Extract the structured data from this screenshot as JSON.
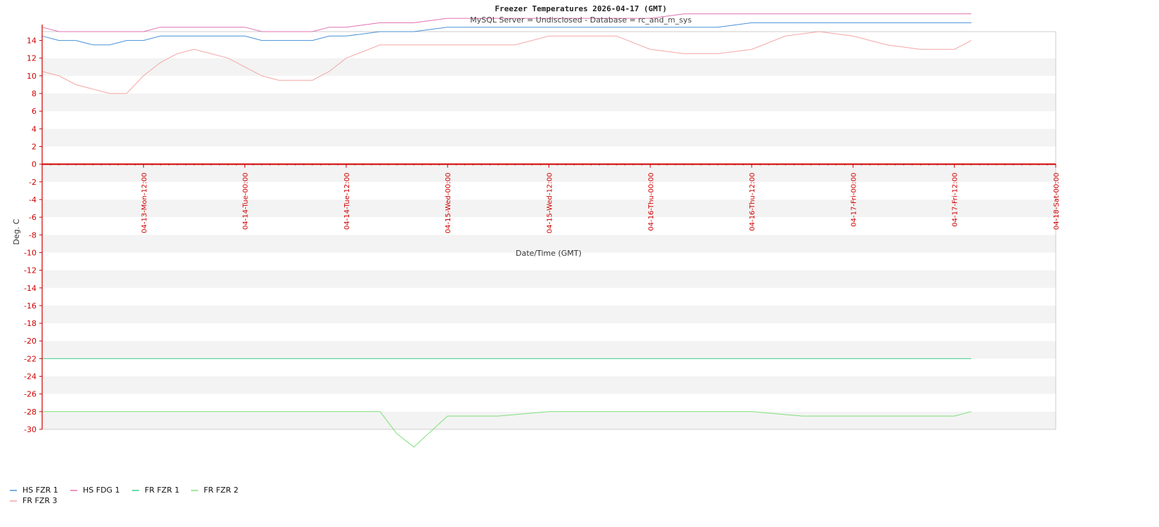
{
  "chart_data": {
    "type": "line",
    "title": "Freezer Temperatures 2026-04-17 (GMT)",
    "subtitle": "MySQL Server = Undisclosed - Database = rc_and_m_sys",
    "xlabel": "Date/Time (GMT)",
    "ylabel": "Deg. C",
    "ylim": [
      -30,
      15
    ],
    "xlim": [
      "2026-04-13 00:00",
      "2026-04-18 00:00"
    ],
    "x_ticks": [
      "04-13-Mon-12:00",
      "04-14-Tue-00:00",
      "04-14-Tue-12:00",
      "04-15-Wed-00:00",
      "04-15-Wed-12:00",
      "04-16-Thu-00:00",
      "04-16-Thu-12:00",
      "04-17-Fri-00:00",
      "04-17-Fri-12:00",
      "04-18-Sat-00:00"
    ],
    "y_ticks": [
      14,
      12,
      10,
      8,
      6,
      4,
      2,
      0,
      -2,
      -4,
      -6,
      -8,
      -10,
      -12,
      -14,
      -16,
      -18,
      -20,
      -22,
      -24,
      -26,
      -28,
      -30
    ],
    "grid": true,
    "legend_position": "bottom-left",
    "series": [
      {
        "name": "HS FZR 1",
        "color": "#4a90d9",
        "x": [
          "2026-04-13 00:00",
          "2026-04-13 02:00",
          "2026-04-13 04:00",
          "2026-04-13 06:00",
          "2026-04-13 08:00",
          "2026-04-13 10:00",
          "2026-04-13 12:00",
          "2026-04-13 14:00",
          "2026-04-13 16:00",
          "2026-04-13 18:00",
          "2026-04-13 20:00",
          "2026-04-13 22:00",
          "2026-04-14 00:00",
          "2026-04-14 02:00",
          "2026-04-14 04:00",
          "2026-04-14 06:00",
          "2026-04-14 08:00",
          "2026-04-14 10:00",
          "2026-04-14 12:00",
          "2026-04-14 16:00",
          "2026-04-14 20:00",
          "2026-04-15 00:00",
          "2026-04-15 04:00",
          "2026-04-15 08:00",
          "2026-04-15 12:00",
          "2026-04-15 16:00",
          "2026-04-15 20:00",
          "2026-04-16 00:00",
          "2026-04-16 04:00",
          "2026-04-16 08:00",
          "2026-04-16 12:00",
          "2026-04-16 16:00",
          "2026-04-16 20:00",
          "2026-04-17 00:00",
          "2026-04-17 04:00",
          "2026-04-17 08:00",
          "2026-04-17 12:00",
          "2026-04-17 14:00"
        ],
        "y": [
          14.5,
          14.0,
          14.0,
          13.5,
          13.5,
          14.0,
          14.0,
          14.5,
          14.5,
          14.5,
          14.5,
          14.5,
          14.5,
          14.0,
          14.0,
          14.0,
          14.0,
          14.5,
          14.5,
          15.0,
          15.0,
          15.5,
          15.5,
          15.5,
          15.5,
          15.5,
          15.5,
          15.5,
          15.5,
          15.5,
          16.0,
          16.0,
          16.0,
          16.0,
          16.0,
          16.0,
          16.0,
          16.0
        ]
      },
      {
        "name": "HS FDG 1",
        "color": "#e070b0",
        "x": [
          "2026-04-13 00:00",
          "2026-04-13 02:00",
          "2026-04-13 04:00",
          "2026-04-13 06:00",
          "2026-04-13 08:00",
          "2026-04-13 10:00",
          "2026-04-13 12:00",
          "2026-04-13 14:00",
          "2026-04-13 16:00",
          "2026-04-13 18:00",
          "2026-04-13 20:00",
          "2026-04-13 22:00",
          "2026-04-14 00:00",
          "2026-04-14 02:00",
          "2026-04-14 04:00",
          "2026-04-14 06:00",
          "2026-04-14 08:00",
          "2026-04-14 10:00",
          "2026-04-14 12:00",
          "2026-04-14 16:00",
          "2026-04-14 20:00",
          "2026-04-15 00:00",
          "2026-04-15 04:00",
          "2026-04-15 08:00",
          "2026-04-15 12:00",
          "2026-04-15 16:00",
          "2026-04-15 20:00",
          "2026-04-16 00:00",
          "2026-04-16 04:00",
          "2026-04-16 08:00",
          "2026-04-16 12:00",
          "2026-04-16 16:00",
          "2026-04-16 20:00",
          "2026-04-17 00:00",
          "2026-04-17 04:00",
          "2026-04-17 08:00",
          "2026-04-17 12:00",
          "2026-04-17 14:00"
        ],
        "y": [
          15.5,
          15.0,
          15.0,
          15.0,
          15.0,
          15.0,
          15.0,
          15.5,
          15.5,
          15.5,
          15.5,
          15.5,
          15.5,
          15.0,
          15.0,
          15.0,
          15.0,
          15.5,
          15.5,
          16.0,
          16.0,
          16.5,
          16.5,
          16.5,
          16.5,
          16.5,
          16.5,
          16.5,
          17.0,
          17.0,
          17.0,
          17.0,
          17.0,
          17.0,
          17.0,
          17.0,
          17.0,
          17.0
        ]
      },
      {
        "name": "FR FZR 1",
        "color": "#3ecf8e",
        "x": [
          "2026-04-13 00:00",
          "2026-04-13 06:00",
          "2026-04-13 12:00",
          "2026-04-13 18:00",
          "2026-04-14 00:00",
          "2026-04-14 06:00",
          "2026-04-14 12:00",
          "2026-04-14 18:00",
          "2026-04-15 00:00",
          "2026-04-15 06:00",
          "2026-04-15 12:00",
          "2026-04-15 18:00",
          "2026-04-16 00:00",
          "2026-04-16 06:00",
          "2026-04-16 12:00",
          "2026-04-16 18:00",
          "2026-04-17 00:00",
          "2026-04-17 06:00",
          "2026-04-17 12:00",
          "2026-04-17 14:00"
        ],
        "y": [
          -22.0,
          -22.0,
          -22.0,
          -22.0,
          -22.0,
          -22.0,
          -22.0,
          -22.0,
          -22.0,
          -22.0,
          -22.0,
          -22.0,
          -22.0,
          -22.0,
          -22.0,
          -22.0,
          -22.0,
          -22.0,
          -22.0,
          -22.0
        ]
      },
      {
        "name": "FR FZR 2",
        "color": "#7ee07a",
        "x": [
          "2026-04-13 00:00",
          "2026-04-13 06:00",
          "2026-04-13 12:00",
          "2026-04-13 18:00",
          "2026-04-14 00:00",
          "2026-04-14 06:00",
          "2026-04-14 12:00",
          "2026-04-14 16:00",
          "2026-04-14 18:00",
          "2026-04-14 20:00",
          "2026-04-15 00:00",
          "2026-04-15 06:00",
          "2026-04-15 12:00",
          "2026-04-15 18:00",
          "2026-04-16 00:00",
          "2026-04-16 06:00",
          "2026-04-16 12:00",
          "2026-04-16 18:00",
          "2026-04-17 00:00",
          "2026-04-17 06:00",
          "2026-04-17 12:00",
          "2026-04-17 14:00"
        ],
        "y": [
          -28.0,
          -28.0,
          -28.0,
          -28.0,
          -28.0,
          -28.0,
          -28.0,
          -28.0,
          -30.5,
          -32.0,
          -28.5,
          -28.5,
          -28.0,
          -28.0,
          -28.0,
          -28.0,
          -28.0,
          -28.5,
          -28.5,
          -28.5,
          -28.5,
          -28.0
        ]
      },
      {
        "name": "FR FZR 3",
        "color": "#f4a6a6",
        "x": [
          "2026-04-13 00:00",
          "2026-04-13 02:00",
          "2026-04-13 04:00",
          "2026-04-13 06:00",
          "2026-04-13 08:00",
          "2026-04-13 10:00",
          "2026-04-13 12:00",
          "2026-04-13 14:00",
          "2026-04-13 16:00",
          "2026-04-13 18:00",
          "2026-04-13 20:00",
          "2026-04-13 22:00",
          "2026-04-14 00:00",
          "2026-04-14 02:00",
          "2026-04-14 04:00",
          "2026-04-14 06:00",
          "2026-04-14 08:00",
          "2026-04-14 10:00",
          "2026-04-14 12:00",
          "2026-04-14 16:00",
          "2026-04-14 20:00",
          "2026-04-15 00:00",
          "2026-04-15 04:00",
          "2026-04-15 08:00",
          "2026-04-15 12:00",
          "2026-04-15 16:00",
          "2026-04-15 20:00",
          "2026-04-16 00:00",
          "2026-04-16 04:00",
          "2026-04-16 08:00",
          "2026-04-16 12:00",
          "2026-04-16 16:00",
          "2026-04-16 20:00",
          "2026-04-17 00:00",
          "2026-04-17 04:00",
          "2026-04-17 08:00",
          "2026-04-17 12:00",
          "2026-04-17 14:00"
        ],
        "y": [
          10.5,
          10.0,
          9.0,
          8.5,
          8.0,
          8.0,
          10.0,
          11.5,
          12.5,
          13.0,
          12.5,
          12.0,
          11.0,
          10.0,
          9.5,
          9.5,
          9.5,
          10.5,
          12.0,
          13.5,
          13.5,
          13.5,
          13.5,
          13.5,
          14.5,
          14.5,
          14.5,
          13.0,
          12.5,
          12.5,
          13.0,
          14.5,
          15.0,
          14.5,
          13.5,
          13.0,
          13.0,
          14.0
        ]
      }
    ]
  }
}
